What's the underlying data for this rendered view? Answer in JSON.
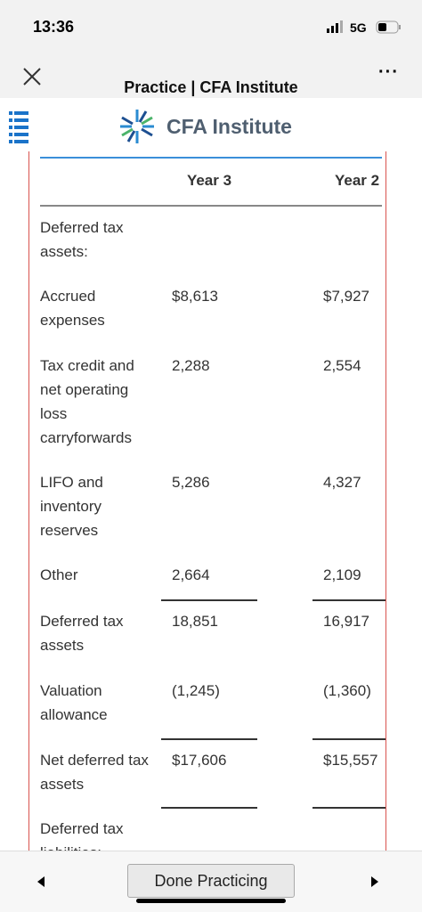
{
  "status_bar": {
    "time": "13:36",
    "network": "5G"
  },
  "header": {
    "title": "Practice | CFA Institute",
    "logo_text": "CFA Institute"
  },
  "table": {
    "columns": [
      "Year 3",
      "Year 2"
    ],
    "rows": [
      {
        "label": "Deferred tax assets:"
      },
      {
        "label": "Accrued expenses",
        "values": [
          "$8,613",
          "$7,927"
        ]
      },
      {
        "label": "Tax credit and net operating loss carryforwards",
        "values": [
          "2,288",
          "2,554"
        ]
      },
      {
        "label": "LIFO and inventory reserves",
        "values": [
          "5,286",
          "4,327"
        ]
      },
      {
        "label": "Other",
        "values": [
          "2,664",
          "2,109"
        ]
      },
      {
        "label": "Deferred tax assets",
        "values": [
          "18,851",
          "16,917"
        ]
      },
      {
        "label": "Valuation allowance",
        "values": [
          "(1,245)",
          "(1,360)"
        ]
      },
      {
        "label": "Net deferred tax assets",
        "values": [
          "$17,606",
          "$15,557"
        ]
      },
      {
        "label": "Deferred tax liabilities:"
      }
    ]
  },
  "footer": {
    "button": "Done Practicing"
  }
}
